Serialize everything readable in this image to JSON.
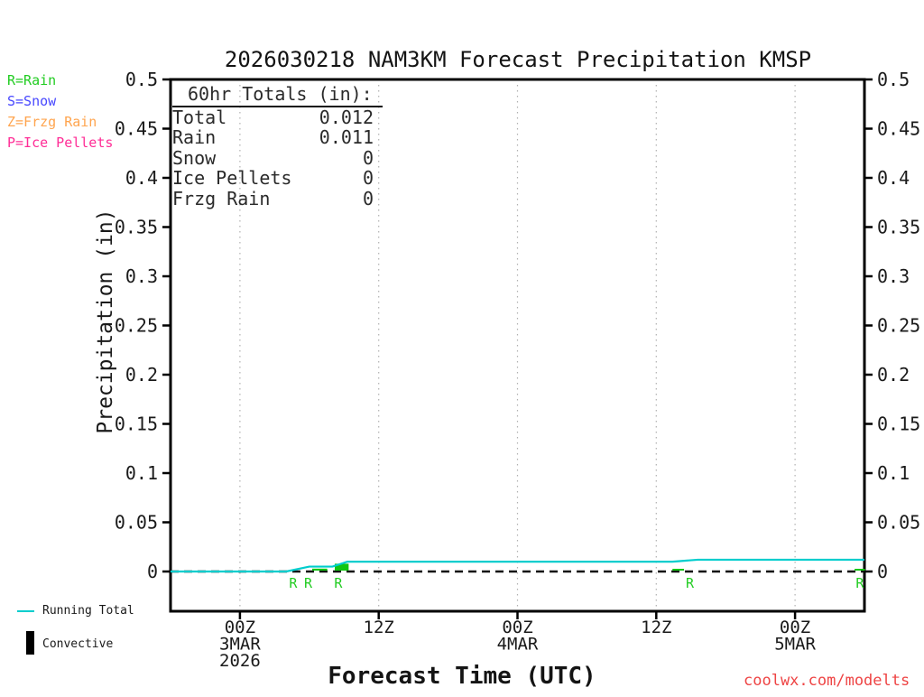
{
  "colors": {
    "rain_green": "#22CC22",
    "snow_blue": "#4848FF",
    "frzg_orange": "#FFA54F",
    "pellets_pink": "#FF2D96",
    "running_total_cyan": "#00CDCD",
    "convective_black": "#000000",
    "watermark_red": "#EE4444",
    "grid_gray": "#B0B0B0"
  },
  "type_legend": [
    {
      "label": "R=Rain",
      "color": "#22CC22"
    },
    {
      "label": "S=Snow",
      "color": "#4848FF"
    },
    {
      "label": "Z=Frzg Rain",
      "color": "#FFA54F"
    },
    {
      "label": "P=Ice Pellets",
      "color": "#FF2D96"
    }
  ],
  "series_legend": {
    "line_label": "Running Total",
    "bar_label": "Convective"
  },
  "totals_box": {
    "heading": "60hr Totals (in):",
    "rows": [
      {
        "label": "Total",
        "value": "0.012"
      },
      {
        "label": "Rain",
        "value": "0.011"
      },
      {
        "label": "Snow",
        "value": "0"
      },
      {
        "label": "Ice Pellets",
        "value": "0"
      },
      {
        "label": "Frzg Rain",
        "value": "0"
      }
    ]
  },
  "watermark": "coolwx.com/modelts",
  "chart_data": {
    "type": "line",
    "title": "2026030218 NAM3KM Forecast Precipitation KMSP",
    "xlabel": "Forecast Time (UTC)",
    "ylabel": "Precipitation (in)",
    "x_unit": "forecast hours from 18Z 2 MAR 2026, 60hr span",
    "xlim_hours": [
      0,
      60
    ],
    "ylim": [
      0,
      0.5
    ],
    "grid": "vertical dotted lines at labeled ticks only",
    "zero_line": "dashed horizontal black line at y=0",
    "legend_position": "outside bottom-left",
    "y_ticks": [
      {
        "v": 0,
        "label": "0"
      },
      {
        "v": 0.05,
        "label": "0.05"
      },
      {
        "v": 0.1,
        "label": "0.1"
      },
      {
        "v": 0.15,
        "label": "0.15"
      },
      {
        "v": 0.2,
        "label": "0.2"
      },
      {
        "v": 0.25,
        "label": "0.25"
      },
      {
        "v": 0.3,
        "label": "0.3"
      },
      {
        "v": 0.35,
        "label": "0.35"
      },
      {
        "v": 0.4,
        "label": "0.4"
      },
      {
        "v": 0.45,
        "label": "0.45"
      },
      {
        "v": 0.5,
        "label": "0.5"
      }
    ],
    "x_ticks": [
      {
        "hour": 6,
        "lines": [
          "00Z",
          "3MAR",
          "2026"
        ]
      },
      {
        "hour": 18,
        "lines": [
          "12Z"
        ]
      },
      {
        "hour": 30,
        "lines": [
          "00Z",
          "4MAR"
        ]
      },
      {
        "hour": 42,
        "lines": [
          "12Z"
        ]
      },
      {
        "hour": 54,
        "lines": [
          "00Z",
          "5MAR"
        ]
      }
    ],
    "series": [
      {
        "name": "Running Total",
        "color": "#00CDCD",
        "points": [
          [
            0,
            0
          ],
          [
            10,
            0
          ],
          [
            12,
            0.005
          ],
          [
            14,
            0.005
          ],
          [
            15.3,
            0.01
          ],
          [
            43.4,
            0.01
          ],
          [
            45.6,
            0.012
          ],
          [
            60,
            0.012
          ]
        ]
      }
    ],
    "convective_bars": {
      "color": "#11C611",
      "bars": [
        {
          "hour": 12.9,
          "width_hours": 1.3,
          "value": 0.002
        },
        {
          "hour": 14.8,
          "width_hours": 1.2,
          "value": 0.007
        },
        {
          "hour": 43.9,
          "width_hours": 1.0,
          "value": 0.001
        },
        {
          "hour": 59.6,
          "width_hours": 0.9,
          "value": 0.001
        }
      ]
    },
    "precip_type_markers": {
      "letter": "R",
      "color": "#22CC22",
      "hours": [
        10.6,
        11.9,
        14.5,
        44.9,
        59.6
      ]
    }
  }
}
